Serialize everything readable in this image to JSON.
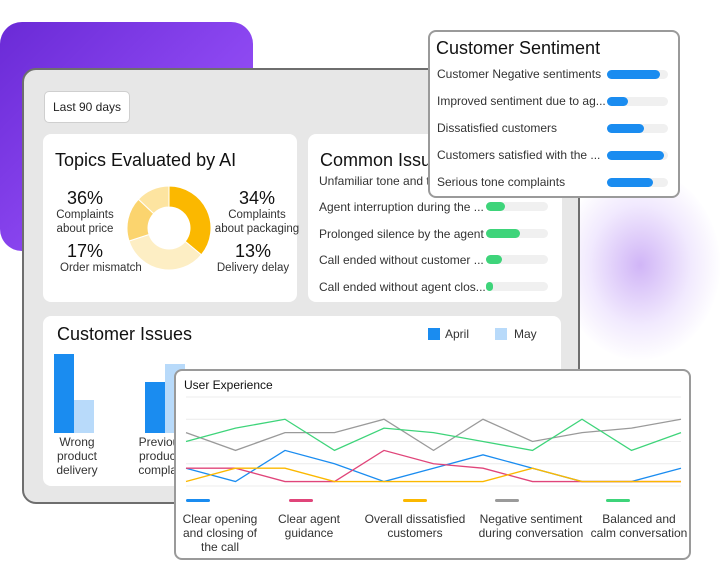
{
  "date_filter": "Last 90 days",
  "topics": {
    "title": "Topics Evaluated by AI",
    "stats": [
      {
        "pct": "36%",
        "label": "Complaints about price",
        "lines": [
          "Complaints",
          "about price"
        ]
      },
      {
        "pct": "34%",
        "label": "Complaints about packaging",
        "lines": [
          "Complaints",
          "about packaging"
        ]
      },
      {
        "pct": "17%",
        "label": "Order mismatch",
        "lines": [
          "Order mismatch"
        ]
      },
      {
        "pct": "13%",
        "label": "Delivery delay",
        "lines": [
          "Delivery delay"
        ]
      }
    ],
    "donut_values": [
      36,
      34,
      17,
      13
    ],
    "donut_colors": [
      "#fbb800",
      "#fdeec4",
      "#fbd46e",
      "#fde4a0"
    ]
  },
  "common_issues": {
    "title": "Common Issues",
    "items": [
      {
        "label": "Unfamiliar tone and t...",
        "value": 0
      },
      {
        "label": "Agent interruption during the ...",
        "value": 0.3
      },
      {
        "label": "Prolonged silence by the agent",
        "value": 0.55
      },
      {
        "label": "Call ended without customer ...",
        "value": 0.25
      },
      {
        "label": "Call ended without agent clos...",
        "value": 0.12
      }
    ],
    "color": "#3ed47a"
  },
  "customer_sentiment": {
    "title": "Customer Sentiment",
    "items": [
      {
        "label": "Customer Negative sentiments",
        "value": 0.87
      },
      {
        "label": "Improved sentiment due to ag...",
        "value": 0.35
      },
      {
        "label": "Dissatisfied customers",
        "value": 0.6
      },
      {
        "label": "Customers satisfied with the ...",
        "value": 0.93
      },
      {
        "label": "Serious tone complaints",
        "value": 0.75
      }
    ],
    "color": "#1a8cf0"
  },
  "customer_issues": {
    "title": "Customer Issues",
    "legend": [
      {
        "name": "April",
        "color": "#1a8cf0"
      },
      {
        "name": "May",
        "color": "#b8dafa"
      }
    ],
    "chart_data": {
      "type": "bar",
      "categories": [
        "Wrong product delivery",
        "Previous product complaints"
      ],
      "category_lines": [
        [
          "Wrong",
          "product",
          "delivery"
        ],
        [
          "Previou",
          "product",
          "complai"
        ]
      ],
      "series": [
        {
          "name": "April",
          "values": [
            100,
            65
          ]
        },
        {
          "name": "May",
          "values": [
            42,
            87
          ]
        }
      ],
      "ylim": [
        0,
        100
      ]
    }
  },
  "user_experience": {
    "title": "User Experience",
    "chart_data": {
      "type": "line",
      "x": [
        1,
        2,
        3,
        4,
        5,
        6,
        7,
        8,
        9,
        10,
        11
      ],
      "ylim": [
        0,
        6
      ],
      "series": [
        {
          "name": "Clear opening and closing of the call",
          "color": "#1a8cf0",
          "values": [
            1.2,
            0.3,
            2.4,
            1.5,
            0.3,
            1.2,
            2.1,
            1.2,
            0.3,
            0.3,
            1.2
          ]
        },
        {
          "name": "Clear agent guidance",
          "color": "#e0457a",
          "values": [
            1.2,
            1.2,
            0.3,
            0.3,
            2.4,
            1.5,
            1.2,
            0.3,
            0.3,
            0.3,
            0.3
          ]
        },
        {
          "name": "Overall dissatisfied customers",
          "color": "#fbb800",
          "values": [
            0.3,
            1.2,
            1.2,
            0.3,
            0.3,
            0.3,
            0.3,
            1.2,
            0.3,
            0.3,
            0.3
          ]
        },
        {
          "name": "Negative sentiment during conversation",
          "color": "#9a9a9a",
          "values": [
            3.6,
            2.4,
            3.6,
            3.6,
            4.5,
            2.4,
            4.5,
            3.0,
            3.6,
            3.9,
            4.5
          ]
        },
        {
          "name": "Balanced and calm conversation",
          "color": "#3ed47a",
          "values": [
            3.0,
            3.9,
            4.5,
            2.4,
            3.9,
            3.6,
            3.0,
            2.4,
            4.5,
            2.4,
            3.6
          ]
        }
      ]
    },
    "legend_lines": [
      [
        "Clear opening",
        "and closing of",
        "the call"
      ],
      [
        "Clear agent",
        "guidance"
      ],
      [
        "Overall dissatisfied",
        "customers"
      ],
      [
        "Negative sentiment",
        "during conversation"
      ],
      [
        "Balanced and",
        "calm conversation"
      ]
    ]
  }
}
